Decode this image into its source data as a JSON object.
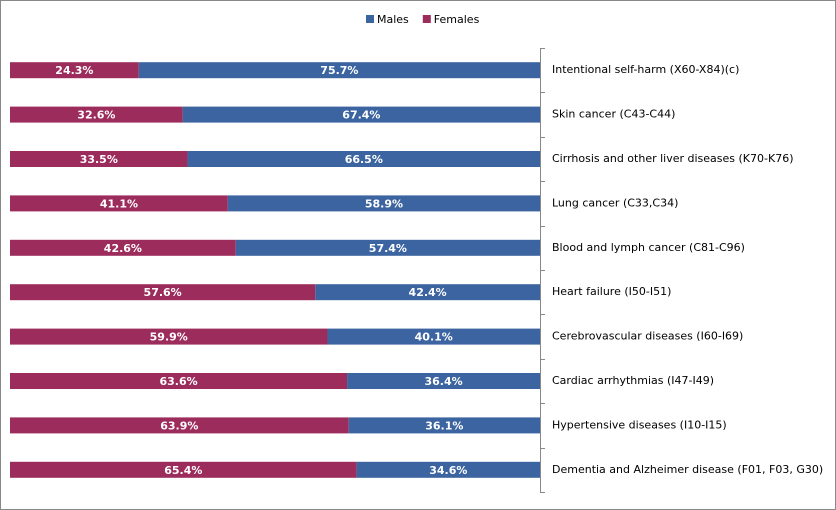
{
  "chart_data": {
    "type": "stacked-bar-100",
    "categories": [
      "Intentional self-harm (X60-X84)(c)",
      "Skin cancer (C43-C44)",
      "Cirrhosis and other liver diseases (K70-K76)",
      "Lung cancer (C33,C34)",
      "Blood and lymph cancer (C81-C96)",
      "Heart failure (I50-I51)",
      "Cerebrovascular diseases (I60-I69)",
      "Cardiac arrhythmias (I47-I49)",
      "Hypertensive diseases (I10-I15)",
      "Dementia and Alzheimer disease (F01, F03, G30)"
    ],
    "series": [
      {
        "name": "Males",
        "color": "#3b64a0",
        "values": [
          75.7,
          67.4,
          66.5,
          58.9,
          57.4,
          42.4,
          40.1,
          36.4,
          36.1,
          34.6
        ],
        "value_labels": [
          "75.7%",
          "67.4%",
          "66.5%",
          "58.9%",
          "57.4%",
          "42.4%",
          "40.1%",
          "36.4%",
          "36.1%",
          "34.6%"
        ]
      },
      {
        "name": "Females",
        "color": "#9c2c5c",
        "values": [
          24.3,
          32.6,
          33.5,
          41.1,
          42.6,
          57.6,
          59.9,
          63.6,
          63.9,
          65.4
        ],
        "value_labels": [
          "24.3%",
          "32.6%",
          "33.5%",
          "41.1%",
          "42.6%",
          "57.6%",
          "59.9%",
          "63.6%",
          "63.9%",
          "65.4%"
        ]
      }
    ]
  }
}
